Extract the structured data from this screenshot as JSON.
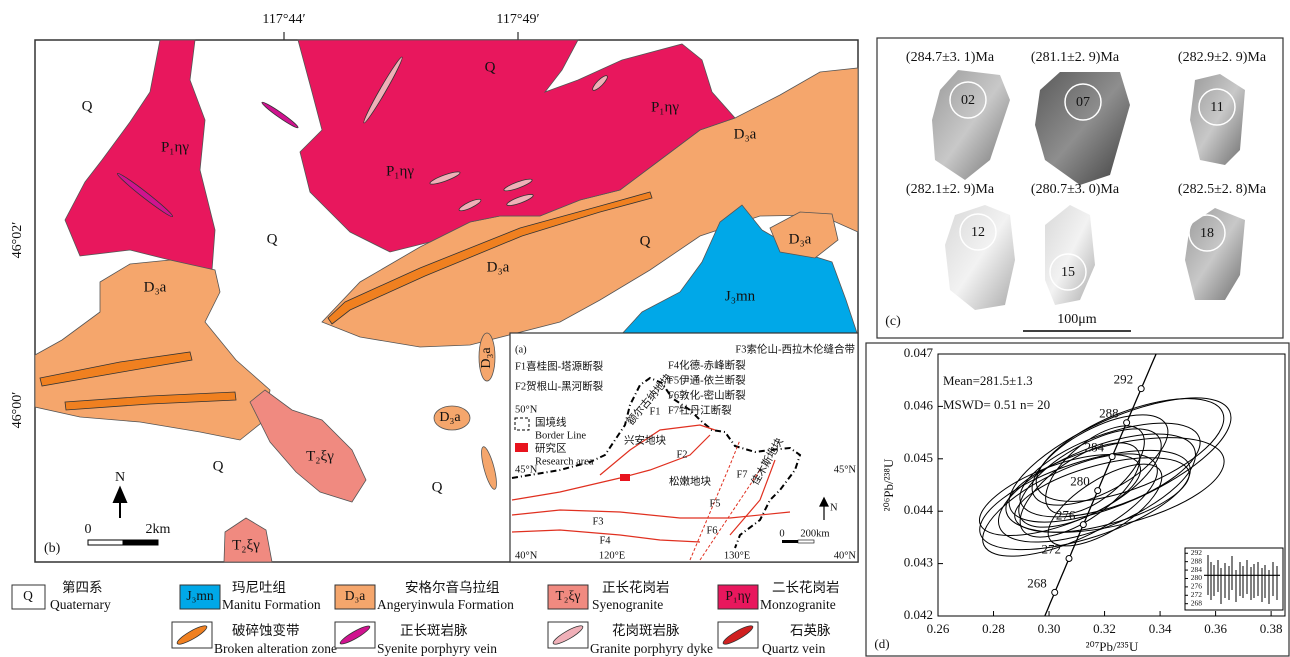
{
  "map": {
    "panel_label": "(b)",
    "lon_labels": [
      "117°44′",
      "117°49′"
    ],
    "lat_labels": [
      "46°02′",
      "46°00′"
    ],
    "labels": [
      "Q",
      "Q",
      "Q",
      "Q",
      "Q",
      "Q",
      "P₁ηγ",
      "P₁ηγ",
      "P₁ηγ",
      "D₃a",
      "D₃a",
      "D₃a",
      "D₃a",
      "J₃mn",
      "D₃a",
      "D₃a",
      "T₂ξγ",
      "T₂ξγ"
    ],
    "north": "N",
    "scale": [
      "0",
      "2km"
    ]
  },
  "inset": {
    "panel_label": "(a)",
    "faults": [
      "F3索伦山-西拉木伦缝合带",
      "F1喜桂图-塔源断裂",
      "F4化德-赤峰断裂",
      "F2贺根山-黑河断裂",
      "F5伊通-依兰断裂",
      "F6敦化-密山断裂",
      "F7牡丹江断裂"
    ],
    "lat": [
      "50°N",
      "45°N",
      "45°N",
      "40°N",
      "40°N"
    ],
    "lon": [
      "120°E",
      "130°E"
    ],
    "legend": {
      "border_cn": "国境线",
      "border_en": "Border Line",
      "area_cn": "研究区",
      "area_en": "Research area"
    },
    "blocks": [
      "额尔古纳地块",
      "兴安地块",
      "松嫩地块",
      "佳木斯地块"
    ],
    "fault_labels": [
      "F1",
      "F2",
      "F3",
      "F4",
      "F5",
      "F6",
      "F7"
    ],
    "north": "N",
    "scale": [
      "0",
      "200km"
    ]
  },
  "legend": [
    {
      "symbol": "Q",
      "cn": "第四系",
      "en": "Quaternary"
    },
    {
      "symbol": "J₃mn",
      "cn": "玛尼吐组",
      "en": "Manitu Formation"
    },
    {
      "symbol": "D₃a",
      "cn": "安格尔音乌拉组",
      "en": "Angeryinwula Formation"
    },
    {
      "symbol": "T₂ξγ",
      "cn": "正长花岗岩",
      "en": "Syenogranite"
    },
    {
      "symbol": "P₁ηγ",
      "cn": "二长花岗岩",
      "en": "Monzogranite"
    },
    {
      "cn": "破碎蚀变带",
      "en": "Broken alteration zone"
    },
    {
      "cn": "正长斑岩脉",
      "en": "Syenite porphyry vein"
    },
    {
      "cn": "花岗斑岩脉",
      "en": "Granite porphyry dyke"
    },
    {
      "cn": "石英脉",
      "en": "Quartz vein"
    }
  ],
  "zircons": {
    "panel_label": "(c)",
    "grains": [
      {
        "age": "(284.7±3. 1)Ma",
        "spot": "02"
      },
      {
        "age": "(281.1±2. 9)Ma",
        "spot": "07"
      },
      {
        "age": "(282.9±2. 9)Ma",
        "spot": "11"
      },
      {
        "age": "(282.1±2. 9)Ma",
        "spot": "12"
      },
      {
        "age": "(280.7±3. 0)Ma",
        "spot": "15"
      },
      {
        "age": "(282.5±2. 8)Ma",
        "spot": "18"
      }
    ],
    "scale": "100μm"
  },
  "chart_data": {
    "type": "concordia",
    "panel_label": "(d)",
    "x_label": "²⁰⁷Pb/²³⁵U",
    "y_label": "²⁰⁶Pb/²³⁸U",
    "annotations": [
      "Mean=281.5±1.3",
      "MSWD= 0.51 n= 20"
    ],
    "xlim": [
      0.26,
      0.385
    ],
    "ylim": [
      0.042,
      0.047
    ],
    "xticks": [
      0.26,
      0.28,
      {
        "value": 0.3,
        "label": "0.30"
      },
      0.32,
      0.34,
      0.36,
      0.38
    ],
    "yticks": [
      0.042,
      0.043,
      0.044,
      0.045,
      0.046,
      0.047
    ],
    "concordia_ages": [
      268,
      272,
      276,
      280,
      284,
      288,
      292
    ],
    "inset": {
      "ylim": [
        265,
        294.5
      ],
      "yticks": [
        292,
        288,
        284,
        280,
        276,
        272,
        268
      ],
      "mean": 281.5
    }
  }
}
